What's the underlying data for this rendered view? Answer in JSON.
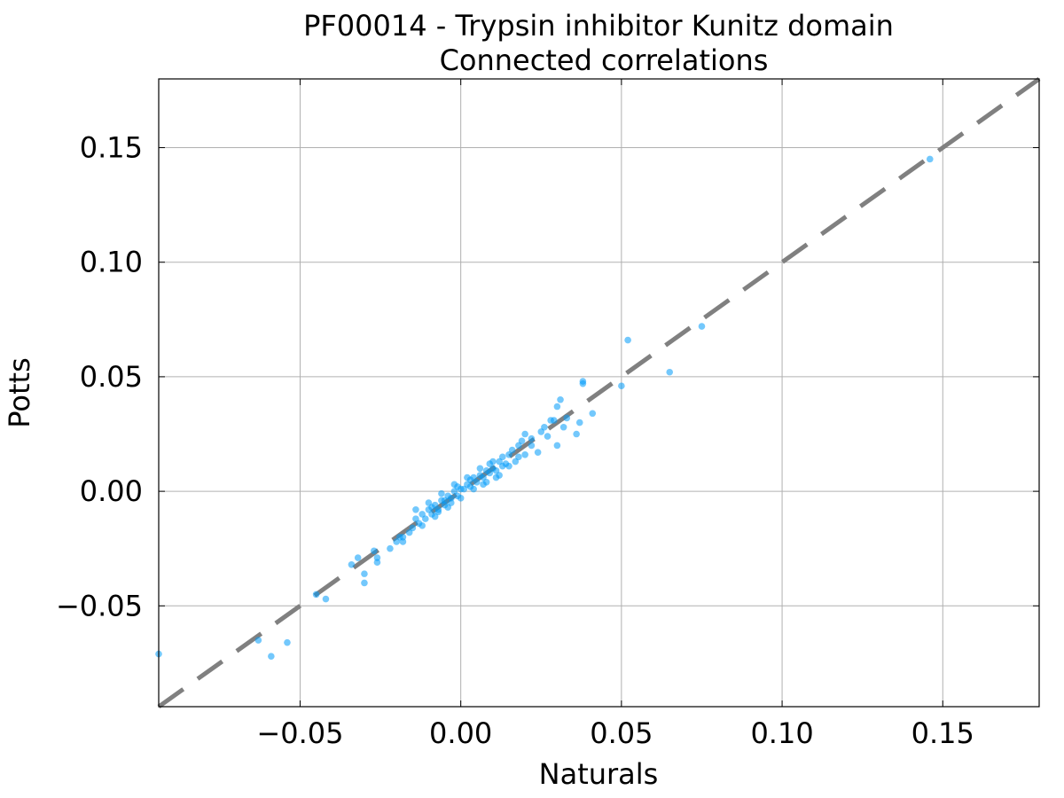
{
  "chart_data": {
    "type": "scatter",
    "title": "PF00014 - Trypsin inhibitor Kunitz domain",
    "subtitle": "Connected correlations",
    "xlabel": "Naturals",
    "ylabel": "Potts",
    "xlim": [
      -0.094,
      0.18
    ],
    "ylim": [
      -0.094,
      0.18
    ],
    "xticks": [
      -0.05,
      0.0,
      0.05,
      0.1,
      0.15
    ],
    "yticks": [
      -0.05,
      0.0,
      0.05,
      0.1,
      0.15
    ],
    "xtick_labels": [
      "−0.05",
      "0.00",
      "0.05",
      "0.10",
      "0.15"
    ],
    "ytick_labels": [
      "−0.05",
      "0.00",
      "0.05",
      "0.10",
      "0.15"
    ],
    "grid": true,
    "point_color": "#009AF9",
    "diagonal_color": "#808080",
    "reference_line": {
      "style": "dashed",
      "from": [
        -0.094,
        -0.094
      ],
      "to": [
        0.18,
        0.18
      ]
    },
    "points": [
      [
        0.146,
        0.145
      ],
      [
        0.075,
        0.072
      ],
      [
        0.065,
        0.052
      ],
      [
        0.052,
        0.066
      ],
      [
        0.05,
        0.046
      ],
      [
        0.038,
        0.048
      ],
      [
        0.038,
        0.047
      ],
      [
        0.041,
        0.034
      ],
      [
        0.037,
        0.03
      ],
      [
        0.036,
        0.025
      ],
      [
        0.033,
        0.032
      ],
      [
        0.032,
        0.028
      ],
      [
        0.031,
        0.04
      ],
      [
        0.03,
        0.037
      ],
      [
        0.03,
        0.02
      ],
      [
        0.029,
        0.031
      ],
      [
        0.028,
        0.031
      ],
      [
        0.026,
        0.028
      ],
      [
        0.025,
        0.026
      ],
      [
        0.024,
        0.017
      ],
      [
        0.022,
        0.023
      ],
      [
        0.02,
        0.025
      ],
      [
        0.019,
        0.022
      ],
      [
        0.018,
        0.015
      ],
      [
        0.017,
        0.013
      ],
      [
        0.016,
        0.018
      ],
      [
        0.015,
        0.016
      ],
      [
        0.014,
        0.012
      ],
      [
        0.013,
        0.011
      ],
      [
        0.012,
        0.013
      ],
      [
        0.011,
        0.009
      ],
      [
        0.01,
        0.01
      ],
      [
        0.009,
        0.008
      ],
      [
        0.008,
        0.009
      ],
      [
        0.007,
        0.006
      ],
      [
        0.006,
        0.007
      ],
      [
        0.005,
        0.004
      ],
      [
        0.004,
        0.006
      ],
      [
        0.003,
        0.002
      ],
      [
        0.002,
        0.003
      ],
      [
        0.001,
        0.001
      ],
      [
        0.0,
        0.001
      ],
      [
        -0.001,
        -0.002
      ],
      [
        -0.002,
        0.0
      ],
      [
        -0.003,
        -0.003
      ],
      [
        -0.004,
        -0.002
      ],
      [
        -0.005,
        -0.006
      ],
      [
        -0.006,
        -0.004
      ],
      [
        -0.007,
        -0.008
      ],
      [
        -0.008,
        -0.006
      ],
      [
        -0.009,
        -0.01
      ],
      [
        -0.01,
        -0.008
      ],
      [
        -0.011,
        -0.012
      ],
      [
        -0.012,
        -0.01
      ],
      [
        -0.013,
        -0.014
      ],
      [
        -0.014,
        -0.012
      ],
      [
        -0.015,
        -0.016
      ],
      [
        -0.016,
        -0.018
      ],
      [
        -0.018,
        -0.02
      ],
      [
        -0.02,
        -0.022
      ],
      [
        -0.022,
        -0.025
      ],
      [
        -0.018,
        -0.022
      ],
      [
        -0.019,
        -0.02
      ],
      [
        0.012,
        0.007
      ],
      [
        0.01,
        0.013
      ],
      [
        0.008,
        0.004
      ],
      [
        0.006,
        0.01
      ],
      [
        0.004,
        0.001
      ],
      [
        0.002,
        0.006
      ],
      [
        0.0,
        -0.003
      ],
      [
        -0.002,
        0.003
      ],
      [
        -0.004,
        -0.007
      ],
      [
        -0.006,
        -0.001
      ],
      [
        -0.008,
        -0.011
      ],
      [
        -0.01,
        -0.005
      ],
      [
        -0.012,
        -0.015
      ],
      [
        -0.014,
        -0.008
      ],
      [
        0.02,
        0.016
      ],
      [
        0.022,
        0.02
      ],
      [
        0.027,
        0.024
      ],
      [
        0.018,
        0.02
      ],
      [
        0.015,
        0.011
      ],
      [
        0.003,
        0.005
      ],
      [
        -0.001,
        0.002
      ],
      [
        -0.005,
        -0.004
      ],
      [
        -0.009,
        -0.007
      ],
      [
        0.007,
        0.003
      ],
      [
        0.009,
        0.012
      ],
      [
        0.011,
        0.006
      ],
      [
        0.013,
        0.015
      ],
      [
        -0.003,
        -0.005
      ],
      [
        -0.007,
        -0.009
      ],
      [
        -0.026,
        -0.029
      ],
      [
        -0.026,
        -0.031
      ],
      [
        -0.027,
        -0.026
      ],
      [
        -0.03,
        -0.036
      ],
      [
        -0.03,
        -0.04
      ],
      [
        -0.032,
        -0.029
      ],
      [
        -0.034,
        -0.032
      ],
      [
        -0.042,
        -0.047
      ],
      [
        -0.045,
        -0.045
      ],
      [
        -0.054,
        -0.066
      ],
      [
        -0.059,
        -0.072
      ],
      [
        -0.063,
        -0.065
      ],
      [
        -0.094,
        -0.071
      ]
    ]
  }
}
